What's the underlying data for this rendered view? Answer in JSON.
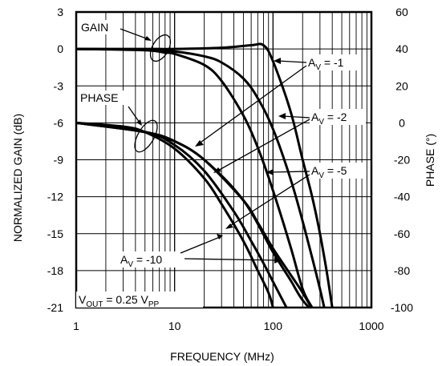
{
  "chart_data": {
    "type": "line",
    "xlabel": "FREQUENCY (MHz)",
    "ylabel_left": "NORMALIZED GAIN (dB)",
    "ylabel_right": "PHASE (°)",
    "x_scale": "log",
    "xlim": [
      1,
      1000
    ],
    "ylim_left": [
      -21,
      3
    ],
    "ylim_right": [
      -100,
      60
    ],
    "x_ticks": [
      1,
      10,
      100,
      1000
    ],
    "x_tick_labels": [
      "1",
      "10",
      "100",
      "1000"
    ],
    "y_ticks_left": [
      3,
      0,
      -3,
      -6,
      -9,
      -12,
      -15,
      -18,
      -21
    ],
    "y_tick_labels_left": [
      "3",
      "0",
      "-3",
      "-6",
      "-9",
      "-12",
      "-15",
      "-18",
      "-21"
    ],
    "y_ticks_right": [
      60,
      40,
      20,
      0,
      -20,
      -40,
      -60,
      -80,
      -100
    ],
    "y_tick_labels_right": [
      "60",
      "40",
      "20",
      "0",
      "-20",
      "-40",
      "-60",
      "-80",
      "-100"
    ],
    "grid": true,
    "series": [
      {
        "group": "gain",
        "label_ref": "AV = -1",
        "axis": "left",
        "x": [
          1,
          5,
          10,
          30,
          60,
          80,
          100,
          150,
          200,
          250,
          300,
          350,
          400
        ],
        "y": [
          0,
          0,
          0,
          0.1,
          0.3,
          0.3,
          -1,
          -5,
          -9,
          -12,
          -15,
          -18,
          -21
        ]
      },
      {
        "group": "gain",
        "label_ref": "AV = -2",
        "axis": "left",
        "x": [
          1,
          5,
          10,
          20,
          30,
          50,
          70,
          100,
          150,
          200,
          300,
          400
        ],
        "y": [
          0,
          -0.05,
          -0.2,
          -0.6,
          -1.1,
          -2.4,
          -4,
          -6.5,
          -10.5,
          -14,
          -19.5,
          -24
        ]
      },
      {
        "group": "gain",
        "label_ref": "AV = -5",
        "axis": "left",
        "x": [
          1,
          5,
          8,
          10,
          20,
          30,
          50,
          70,
          100,
          150,
          200,
          250,
          300
        ],
        "y": [
          0,
          -0.1,
          -0.3,
          -0.4,
          -1.3,
          -2.6,
          -5.4,
          -8,
          -11.5,
          -16,
          -19.5,
          -21,
          -22
        ]
      },
      {
        "group": "phase",
        "label_ref": "AV = -1",
        "axis": "right",
        "x": [
          1,
          5,
          10,
          20,
          50,
          100,
          150,
          200,
          300,
          400
        ],
        "y": [
          0,
          -5,
          -10,
          -20,
          -42,
          -70,
          -85,
          -96,
          -106,
          -112
        ]
      },
      {
        "group": "phase",
        "label_ref": "AV = -2",
        "axis": "right",
        "x": [
          1,
          5,
          10,
          20,
          50,
          70,
          100,
          150,
          200,
          300
        ],
        "y": [
          0,
          -5,
          -10,
          -20,
          -42,
          -54,
          -68,
          -82,
          -92,
          -108
        ]
      },
      {
        "group": "phase",
        "label_ref": "AV = -5",
        "axis": "right",
        "x": [
          1,
          5,
          10,
          20,
          40,
          60,
          80,
          100,
          150
        ],
        "y": [
          0,
          -5,
          -12,
          -26,
          -48,
          -64,
          -76,
          -86,
          -104
        ]
      },
      {
        "group": "phase",
        "label_ref": "AV = -10",
        "axis": "right",
        "x": [
          1,
          3,
          5,
          10,
          20,
          30,
          50,
          70,
          90,
          100
        ],
        "y": [
          0,
          -2,
          -5,
          -14,
          -30,
          -44,
          -64,
          -80,
          -92,
          -100
        ]
      }
    ],
    "annotations": {
      "gain": "GAIN",
      "phase": "PHASE",
      "vout": {
        "a": "V",
        "a_sub": "OUT",
        "b": " = 0.25 V",
        "b_sub": "PP"
      },
      "av1": {
        "main": "A",
        "sub": "V",
        "rest": " = -1"
      },
      "av2": {
        "main": "A",
        "sub": "V",
        "rest": " = -2"
      },
      "av5": {
        "main": "A",
        "sub": "V",
        "rest": " = -5"
      },
      "av10": {
        "main": "A",
        "sub": "V",
        "rest": " = -10"
      }
    }
  }
}
